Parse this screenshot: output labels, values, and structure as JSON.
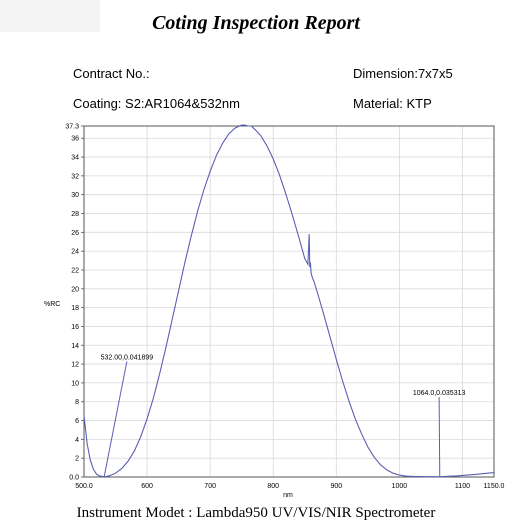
{
  "report": {
    "title": "Coting Inspection Report",
    "contract_label": "Contract No.:",
    "dimension_label": "Dimension:7x7x5",
    "coating_label": "Coating:  S2:AR1064&532nm",
    "material_label": "Material:  KTP",
    "instrument_label": "Instrument Modet : Lambda950 UV/VIS/NIR Spectrometer"
  },
  "chart_data": {
    "type": "line",
    "title": "",
    "xlabel": "nm",
    "ylabel": "%RC",
    "xlim": [
      500,
      1150
    ],
    "ylim": [
      0,
      37.3
    ],
    "grid": true,
    "x_ticks": [
      "500.0",
      "600",
      "700",
      "800",
      "900",
      "1000",
      "1100",
      "1150.0"
    ],
    "y_ticks": [
      "0.0",
      "2",
      "4",
      "6",
      "8",
      "10",
      "12",
      "14",
      "16",
      "18",
      "20",
      "22",
      "24",
      "26",
      "28",
      "30",
      "32",
      "34",
      "36",
      "37.3"
    ],
    "line_color": "#5b5fb3",
    "series": [
      {
        "x": [
          500,
          505,
          510,
          515,
          520,
          525,
          530,
          532,
          535,
          540,
          550,
          560,
          570,
          580,
          590,
          600,
          610,
          620,
          630,
          640,
          650,
          660,
          670,
          680,
          690,
          700,
          710,
          720,
          730,
          740,
          750,
          755,
          760,
          765,
          770,
          780,
          790,
          800,
          810,
          820,
          830,
          840,
          850,
          855,
          857,
          858,
          859,
          860,
          862,
          865,
          870,
          880,
          890,
          900,
          910,
          920,
          930,
          940,
          950,
          960,
          970,
          980,
          990,
          1000,
          1010,
          1020,
          1030,
          1040,
          1050,
          1060,
          1064,
          1070,
          1080,
          1090,
          1100,
          1110,
          1120,
          1130,
          1140,
          1150
        ],
        "y": [
          6.5,
          3.5,
          1.8,
          0.8,
          0.3,
          0.1,
          0.05,
          0.04,
          0.06,
          0.12,
          0.4,
          0.9,
          1.7,
          2.8,
          4.3,
          6.2,
          8.4,
          11.0,
          13.8,
          16.8,
          19.8,
          22.8,
          25.6,
          28.2,
          30.5,
          32.5,
          34.2,
          35.5,
          36.5,
          37.1,
          37.4,
          37.4,
          37.3,
          37.3,
          37.0,
          36.3,
          35.2,
          33.8,
          32.1,
          30.1,
          27.9,
          25.6,
          23.2,
          22.6,
          25.8,
          22.3,
          22.8,
          21.7,
          21.2,
          20.7,
          19.6,
          17.3,
          14.9,
          12.5,
          10.2,
          8.1,
          6.2,
          4.6,
          3.2,
          2.1,
          1.3,
          0.75,
          0.4,
          0.2,
          0.1,
          0.06,
          0.04,
          0.035,
          0.035,
          0.035,
          0.035,
          0.05,
          0.08,
          0.12,
          0.17,
          0.22,
          0.28,
          0.34,
          0.4,
          0.47
        ]
      }
    ],
    "annotations": [
      {
        "text": "532.00,0.041899",
        "x": 532,
        "y": 0.041899,
        "text_x": 568,
        "text_y": 12.5
      },
      {
        "text": "1064.0,0.035313",
        "x": 1064,
        "y": 0.035313,
        "text_x": 1063,
        "text_y": 8.7
      }
    ]
  }
}
